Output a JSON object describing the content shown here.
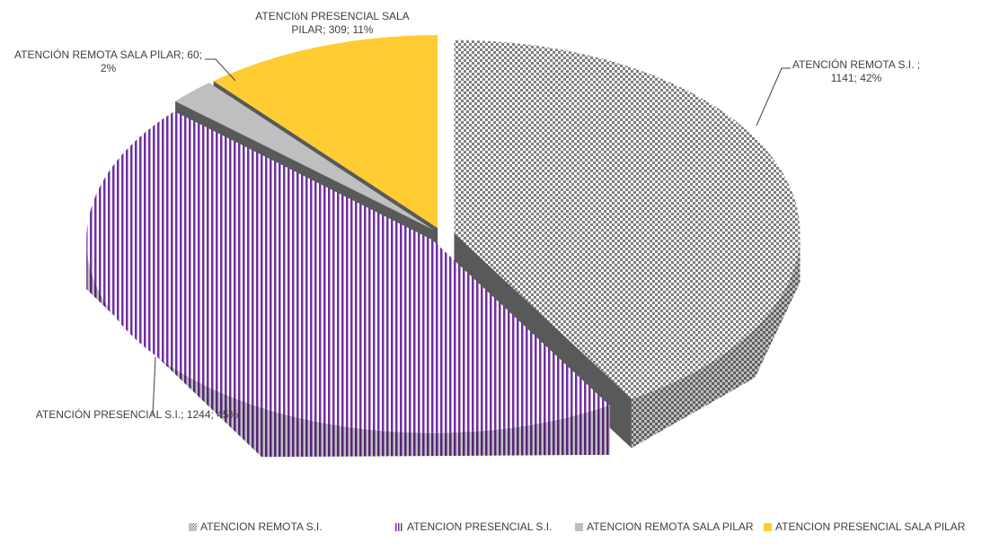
{
  "chart_data": {
    "type": "pie",
    "categories": [
      "ATENCION REMOTA S.I.",
      "ATENCION PRESENCIAL S.I.",
      "ATENCION REMOTA SALA PILAR",
      "ATENCION PRESENCIAL SALA PILAR"
    ],
    "values": [
      1141,
      1244,
      60,
      309
    ],
    "value_labels": [
      "ATENCIÓN REMOTA S.I. ; 1141; 42%",
      "ATENCIÓN PRESENCIAL S.I.; 1244; 45%",
      "ATENCIÓN REMOTA SALA PILAR; 60; 2%",
      "ATENCIóN PRESENCIAL SALA PILAR; 309; 11%"
    ],
    "colors": [
      "#7f7f7f",
      "#7030a0",
      "#bfbfbf",
      "#ffcc33"
    ],
    "legend": "bottom"
  }
}
